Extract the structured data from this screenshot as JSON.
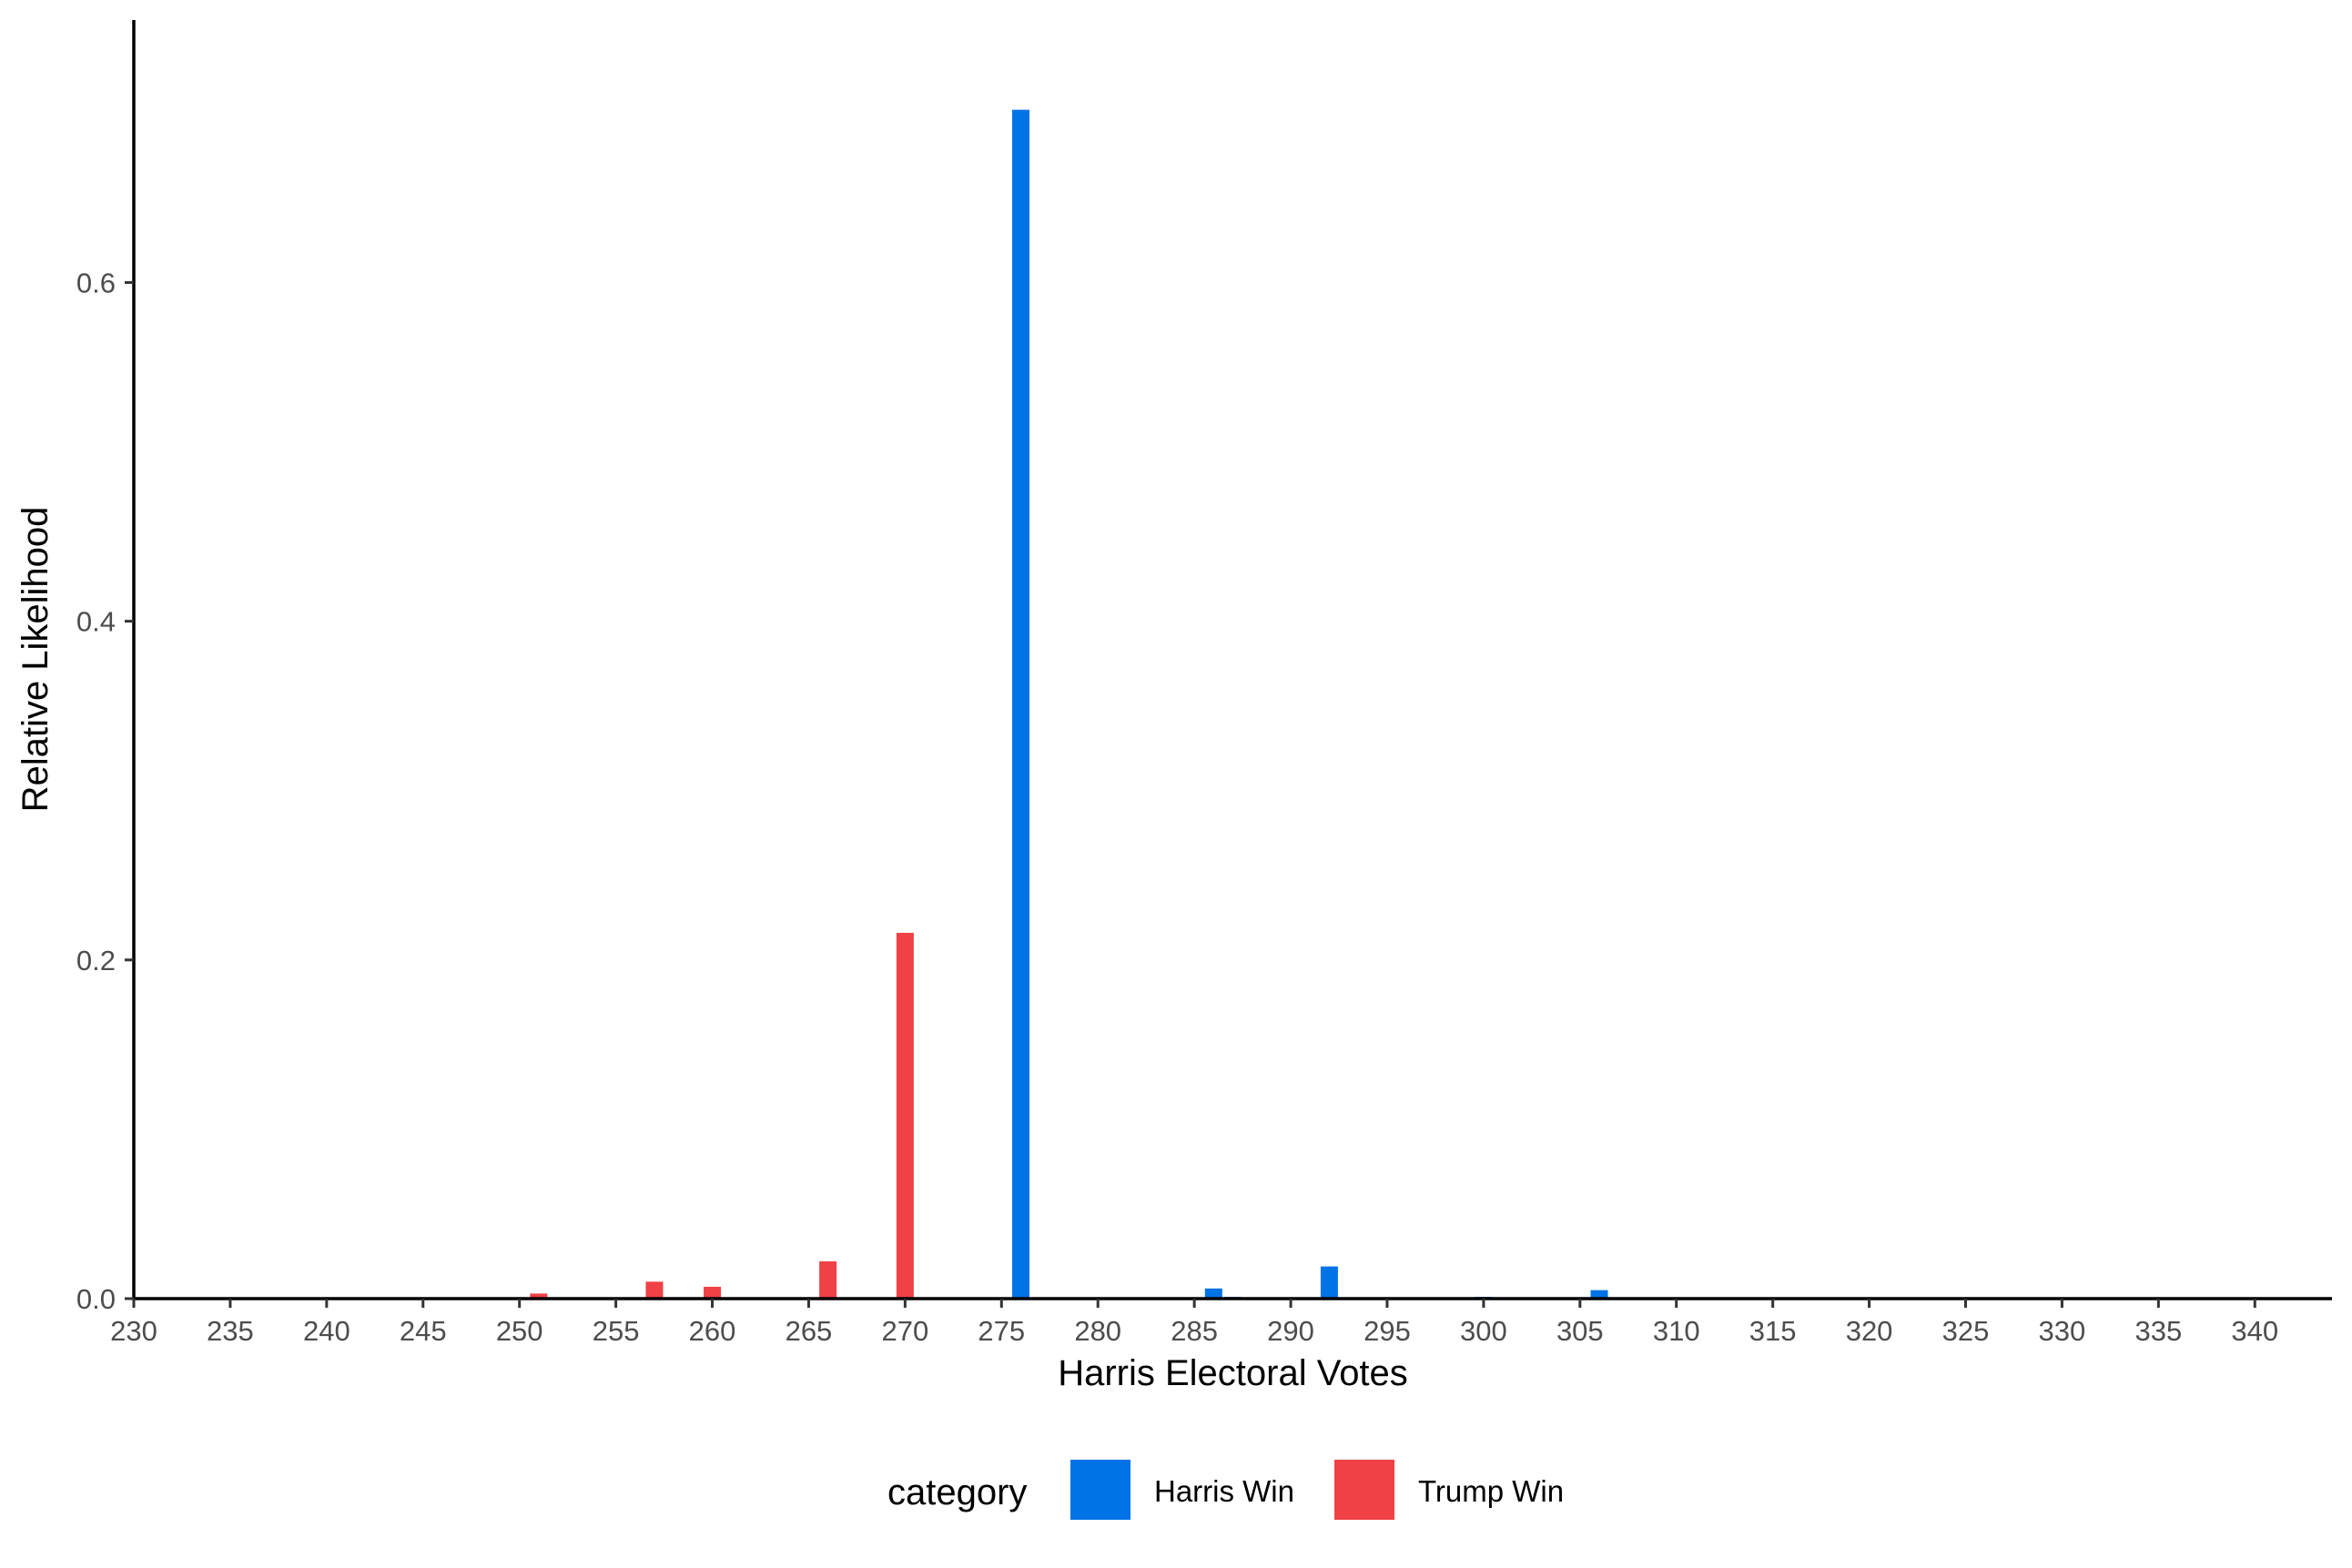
{
  "chart_data": {
    "type": "bar",
    "title": "",
    "xlabel": "Harris Electoral Votes",
    "ylabel": "Relative Likelihood",
    "xlim": [
      230,
      344
    ],
    "ylim": [
      0,
      0.755
    ],
    "x_ticks": [
      230,
      235,
      240,
      245,
      250,
      255,
      260,
      265,
      270,
      275,
      280,
      285,
      290,
      295,
      300,
      305,
      310,
      315,
      320,
      325,
      330,
      335,
      340
    ],
    "y_ticks": [
      0.0,
      0.2,
      0.4,
      0.6
    ],
    "y_tick_labels": [
      "0.0",
      "0.2",
      "0.4",
      "0.6"
    ],
    "grid": false,
    "legend": {
      "title": "category",
      "position": "bottom",
      "entries": [
        "Harris Win",
        "Trump Win"
      ]
    },
    "series": [
      {
        "name": "Harris Win",
        "color": "#0073e6",
        "x": [
          276,
          286,
          287,
          292,
          300,
          306
        ],
        "values": [
          0.702,
          0.006,
          0.001,
          0.019,
          0.001,
          0.005
        ]
      },
      {
        "name": "Trump Win",
        "color": "#ef4146",
        "x": [
          251,
          257,
          260,
          266,
          270
        ],
        "values": [
          0.003,
          0.01,
          0.007,
          0.022,
          0.216
        ]
      }
    ]
  }
}
